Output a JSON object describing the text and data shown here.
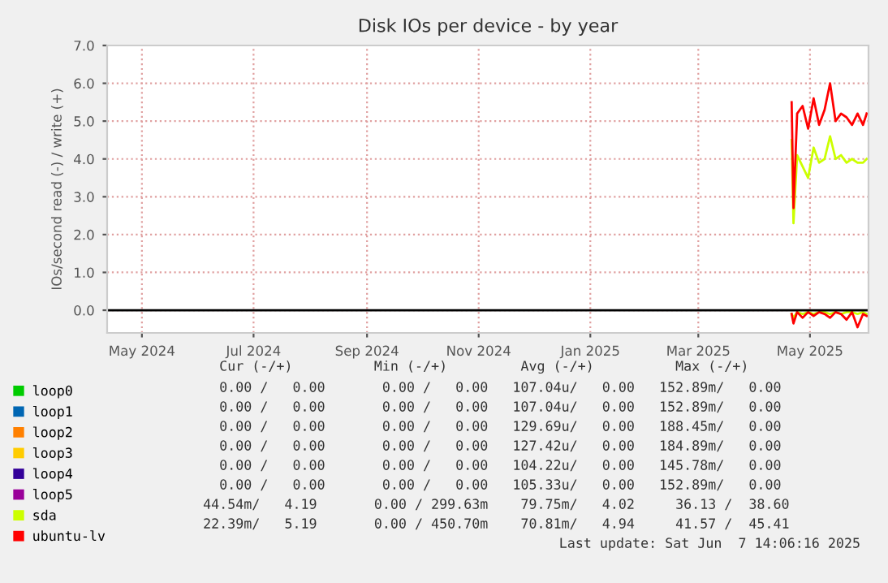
{
  "chart_data": {
    "type": "line",
    "title": "Disk IOs per device - by year",
    "ylabel": "IOs/second read (-) / write (+)",
    "x": [
      "2025-04-21",
      "2025-04-22",
      "2025-04-24",
      "2025-04-27",
      "2025-04-30",
      "2025-05-03",
      "2025-05-06",
      "2025-05-09",
      "2025-05-12",
      "2025-05-15",
      "2025-05-18",
      "2025-05-21",
      "2025-05-24",
      "2025-05-27",
      "2025-05-30",
      "2025-06-01"
    ],
    "xlim": [
      "2024-04-12",
      "2025-06-02"
    ],
    "xticks": [
      {
        "value": "2024-05-01",
        "label": "May 2024"
      },
      {
        "value": "2024-07-01",
        "label": "Jul 2024"
      },
      {
        "value": "2024-09-01",
        "label": "Sep 2024"
      },
      {
        "value": "2024-11-01",
        "label": "Nov 2024"
      },
      {
        "value": "2025-01-01",
        "label": "Jan 2025"
      },
      {
        "value": "2025-03-01",
        "label": "Mar 2025"
      },
      {
        "value": "2025-05-01",
        "label": "May 2025"
      }
    ],
    "ylim": [
      -0.6,
      7.0
    ],
    "yticks": [
      {
        "value": 0,
        "label": "0.0"
      },
      {
        "value": 1,
        "label": "1.0"
      },
      {
        "value": 2,
        "label": "2.0"
      },
      {
        "value": 3,
        "label": "3.0"
      },
      {
        "value": 4,
        "label": "4.0"
      },
      {
        "value": 5,
        "label": "5.0"
      },
      {
        "value": 6,
        "label": "6.0"
      },
      {
        "value": 7,
        "label": "7.0"
      }
    ],
    "grid": true,
    "legend": "bottom left",
    "series": [
      {
        "name": "loop0",
        "color": "#00cc00",
        "values": [
          null,
          null,
          null,
          null,
          null,
          null,
          null,
          null,
          null,
          null,
          null,
          null,
          null,
          null,
          null,
          null
        ]
      },
      {
        "name": "loop1",
        "color": "#0066b3",
        "values": [
          null,
          null,
          null,
          null,
          null,
          null,
          null,
          null,
          null,
          null,
          null,
          null,
          null,
          null,
          null,
          null
        ]
      },
      {
        "name": "loop2",
        "color": "#ff8000",
        "values": [
          null,
          null,
          null,
          null,
          null,
          null,
          null,
          null,
          null,
          null,
          null,
          null,
          null,
          null,
          null,
          null
        ]
      },
      {
        "name": "loop3",
        "color": "#ffcc00",
        "values": [
          null,
          null,
          null,
          null,
          null,
          null,
          null,
          null,
          null,
          null,
          null,
          null,
          null,
          null,
          null,
          null
        ]
      },
      {
        "name": "loop4",
        "color": "#330099",
        "values": [
          null,
          null,
          null,
          null,
          null,
          null,
          null,
          null,
          null,
          null,
          null,
          null,
          null,
          null,
          null,
          null
        ]
      },
      {
        "name": "loop5",
        "color": "#990099",
        "values": [
          null,
          null,
          null,
          null,
          null,
          null,
          null,
          null,
          null,
          null,
          null,
          null,
          null,
          null,
          null,
          null
        ]
      },
      {
        "name": "sda",
        "color": "#ccff00",
        "values": [
          4.5,
          2.3,
          4.1,
          3.8,
          3.5,
          4.3,
          3.9,
          4.0,
          4.6,
          4.0,
          4.1,
          3.9,
          4.0,
          3.9,
          3.9,
          4.0
        ]
      },
      {
        "name": "ubuntu-lv",
        "color": "#ff0000",
        "values": [
          5.5,
          2.7,
          5.2,
          5.4,
          4.8,
          5.6,
          4.9,
          5.3,
          6.0,
          5.0,
          5.2,
          5.1,
          4.9,
          5.2,
          4.9,
          5.2
        ]
      },
      {
        "color": "#ccff00",
        "values": [
          -0.1,
          -0.2,
          -0.05,
          -0.1,
          -0.05,
          -0.1,
          -0.05,
          -0.05,
          -0.1,
          -0.05,
          -0.1,
          -0.05,
          -0.05,
          -0.1,
          -0.05,
          -0.1
        ]
      },
      {
        "color": "#ff0000",
        "values": [
          -0.1,
          -0.35,
          -0.05,
          -0.2,
          -0.05,
          -0.15,
          -0.05,
          -0.1,
          -0.2,
          -0.05,
          -0.1,
          -0.25,
          -0.05,
          -0.45,
          -0.1,
          -0.15
        ]
      }
    ],
    "ref_lines": [
      {
        "axis": "y",
        "value": 0,
        "color": "#000000"
      }
    ],
    "annotations": [
      "     Cur (-/+)          Min (-/+)         Avg (-/+)          Max (-/+)",
      "     0.00 /   0.00       0.00 /   0.00   107.04u/   0.00   152.89m/   0.00",
      "     0.00 /   0.00       0.00 /   0.00   107.04u/   0.00   152.89m/   0.00",
      "     0.00 /   0.00       0.00 /   0.00   129.69u/   0.00   188.45m/   0.00",
      "     0.00 /   0.00       0.00 /   0.00   127.42u/   0.00   184.89m/   0.00",
      "     0.00 /   0.00       0.00 /   0.00   104.22u/   0.00   145.78m/   0.00",
      "     0.00 /   0.00       0.00 /   0.00   105.33u/   0.00   152.89m/   0.00",
      "   44.54m/   4.19       0.00 / 299.63m    79.75m/   4.02     36.13 /  38.60",
      "   22.39m/   5.19       0.00 / 450.70m    70.81m/   4.94     41.57 /  45.41",
      "Last update: Sat Jun  7 14:06:16 2025"
    ]
  }
}
